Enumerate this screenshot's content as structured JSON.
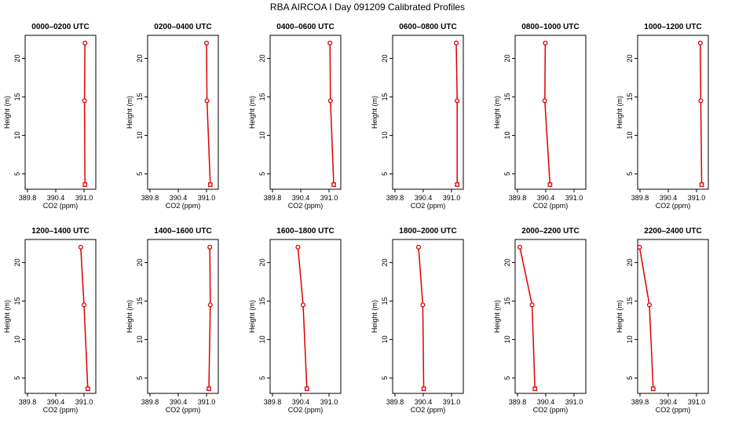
{
  "title": "RBA AIRCOA I  Day 091209  Calibrated Profiles",
  "colors": {
    "series": "#dd0000",
    "axis": "#000000"
  },
  "chart_data": {
    "type": "line",
    "xlabel": "CO2 (ppm)",
    "ylabel": "Height (m)",
    "xlim": [
      389.75,
      391.25
    ],
    "ylim": [
      3,
      23
    ],
    "xticks": [
      389.8,
      390.4,
      391.0
    ],
    "xtick_labels": [
      "389.8",
      "390.4",
      "391.0"
    ],
    "yticks": [
      5,
      10,
      15,
      20
    ],
    "ytick_labels": [
      "5",
      "10",
      "15",
      "20"
    ],
    "grid": false,
    "heights": [
      22,
      14.5,
      3.6
    ],
    "panels": [
      {
        "title": "0000–0200 UTC",
        "values": [
          391.02,
          391.01,
          391.02
        ]
      },
      {
        "title": "0200–0400 UTC",
        "values": [
          391.0,
          391.01,
          391.08
        ]
      },
      {
        "title": "0400–0600 UTC",
        "values": [
          391.02,
          391.03,
          391.1
        ]
      },
      {
        "title": "0600–0800 UTC",
        "values": [
          391.1,
          391.12,
          391.12
        ]
      },
      {
        "title": "0800–1000 UTC",
        "values": [
          390.39,
          390.38,
          390.49
        ]
      },
      {
        "title": "1000–1200 UTC",
        "values": [
          391.08,
          391.09,
          391.11
        ]
      },
      {
        "title": "1200–1400 UTC",
        "values": [
          390.93,
          391.0,
          391.08
        ]
      },
      {
        "title": "1400–1600 UTC",
        "values": [
          391.07,
          391.08,
          391.05
        ]
      },
      {
        "title": "1600–1800 UTC",
        "values": [
          390.34,
          390.45,
          390.53
        ]
      },
      {
        "title": "1800–2000 UTC",
        "values": [
          390.3,
          390.39,
          390.41
        ]
      },
      {
        "title": "2000–2200 UTC",
        "values": [
          389.85,
          390.11,
          390.17
        ]
      },
      {
        "title": "2200–2400 UTC",
        "values": [
          389.79,
          390.0,
          390.08
        ]
      }
    ]
  }
}
